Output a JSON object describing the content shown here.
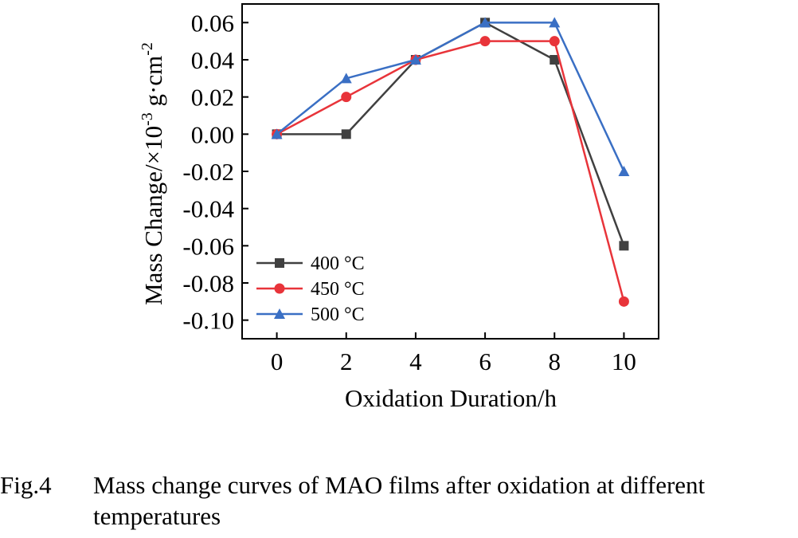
{
  "chart_data": {
    "type": "line",
    "x": [
      0,
      2,
      4,
      6,
      8,
      10
    ],
    "series": [
      {
        "name": "400 °C",
        "values": [
          0.0,
          0.0,
          0.04,
          0.06,
          0.04,
          -0.06
        ],
        "color": "#404040",
        "marker": "square"
      },
      {
        "name": "450 °C",
        "values": [
          0.0,
          0.02,
          0.04,
          0.05,
          0.05,
          -0.09
        ],
        "color": "#e8343a",
        "marker": "circle"
      },
      {
        "name": "500 °C",
        "values": [
          0.0,
          0.03,
          0.04,
          0.06,
          0.06,
          -0.02
        ],
        "color": "#3a6fc4",
        "marker": "triangle"
      }
    ],
    "xlabel": "Oxidation Duration/h",
    "ylabel": "Mass Change/×10-3 g·cm-2",
    "ylabel_parts": {
      "main": "Mass Change/×10",
      "exp1": "-3",
      "mid": " g·cm",
      "exp2": "-2"
    },
    "xlim": [
      -1,
      11
    ],
    "ylim": [
      -0.11,
      0.07
    ],
    "xticks": [
      "0",
      "2",
      "4",
      "6",
      "8",
      "10"
    ],
    "xtick_values": [
      0,
      2,
      4,
      6,
      8,
      10
    ],
    "yticks": [
      "0.06",
      "0.04",
      "0.02",
      "0.00",
      "-0.02",
      "-0.04",
      "-0.06",
      "-0.08",
      "-0.10"
    ],
    "ytick_values": [
      0.06,
      0.04,
      0.02,
      0.0,
      -0.02,
      -0.04,
      -0.06,
      -0.08,
      -0.1
    ],
    "grid": false,
    "legend_position": "bottom-left"
  },
  "caption": {
    "label": "Fig.4",
    "text_line1": "Mass change curves of MAO films after oxidation at different",
    "text_line2": "temperatures"
  }
}
